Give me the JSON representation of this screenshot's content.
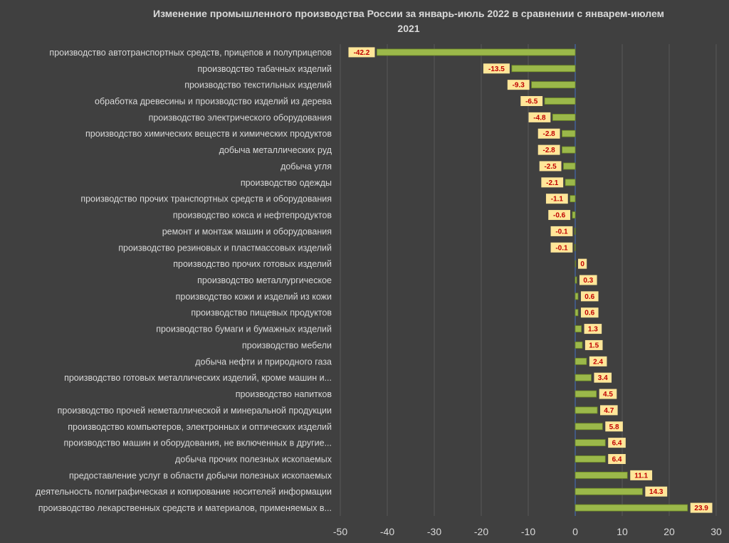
{
  "chart_data": {
    "type": "bar",
    "orientation": "horizontal",
    "title": "Изменение промышленного производства России за январь-июль 2022 в сравнении с январем-июлем 2021",
    "title_lines": [
      "Изменение промышленного производства России за январь-июль 2022 в сравнении с январем-июлем",
      "2021"
    ],
    "xlim": [
      -50,
      30
    ],
    "xticks": [
      -50,
      -40,
      -30,
      -20,
      -10,
      0,
      10,
      20,
      30
    ],
    "grid": true,
    "bar_color": "#9bb84a",
    "bar_border": "#6f8a25",
    "label_bg": "#ffe699",
    "label_color": "#c00000",
    "categories": [
      "производство автотранспортных средств, прицепов и полуприцепов",
      "производство табачных изделий",
      "производство текстильных изделий",
      "обработка древесины и производство изделий из дерева",
      "производство электрического оборудования",
      "производство химических веществ и химических продуктов",
      "добыча металлических руд",
      "добыча угля",
      "производство одежды",
      "производство прочих транспортных средств и оборудования",
      "производство кокса и нефтепродуктов",
      "ремонт и монтаж машин и оборудования",
      "производство резиновых и пластмассовых изделий",
      "производство прочих готовых изделий",
      "производство металлургическое",
      "производство кожи и изделий из кожи",
      "производство пищевых продуктов",
      "производство бумаги и бумажных изделий",
      "производство мебели",
      "добыча нефти и природного газа",
      "производство готовых металлических изделий, кроме машин и...",
      "производство напитков",
      "производство прочей  неметаллической и  минеральной продукции",
      "производство компьютеров, электронных  и оптических изделий",
      "производство машин и оборудования, не включенных в другие...",
      "добыча прочих полезных ископаемых",
      "предоставление услуг в области добычи полезных ископаемых",
      "деятельность полиграфическая и копирование  носителей информации",
      "производство лекарственных средств и материалов, применяемых в..."
    ],
    "values": [
      -42.2,
      -13.5,
      -9.3,
      -6.5,
      -4.8,
      -2.8,
      -2.8,
      -2.5,
      -2.1,
      -1.1,
      -0.6,
      -0.1,
      -0.1,
      0,
      0.3,
      0.6,
      0.6,
      1.3,
      1.5,
      2.4,
      3.4,
      4.5,
      4.7,
      5.8,
      6.4,
      6.4,
      11.1,
      14.3,
      23.9
    ]
  }
}
